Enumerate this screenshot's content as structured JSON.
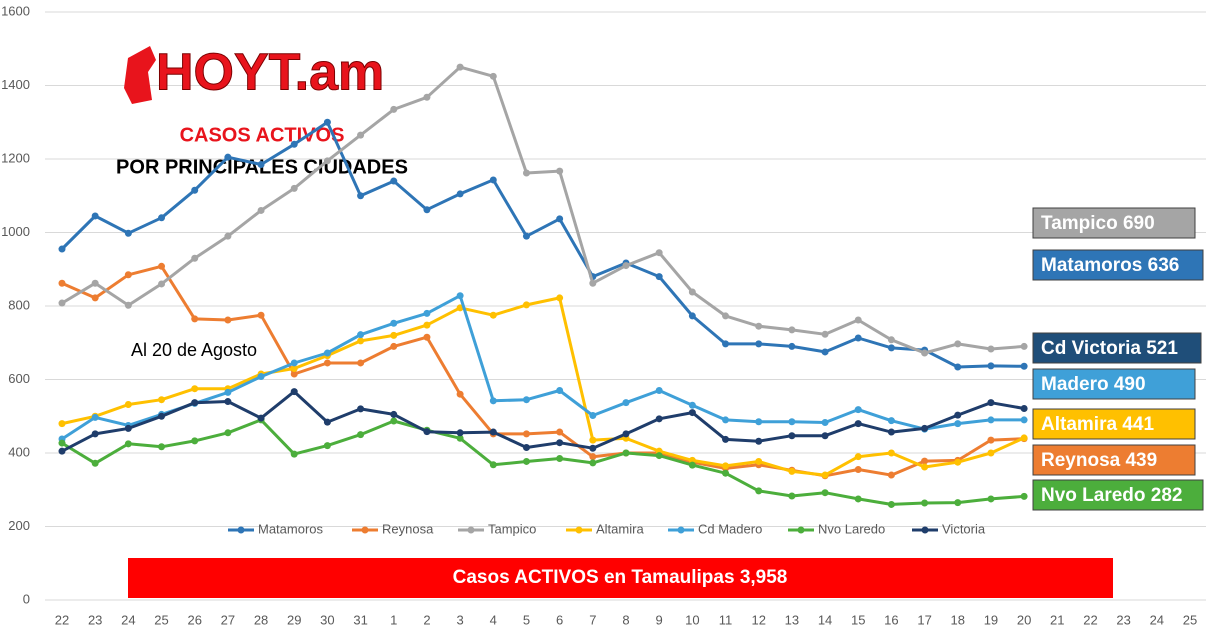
{
  "chart_data": {
    "type": "line",
    "logo": "HOYT.am",
    "title": "CASOS ACTIVOS",
    "subtitle": "POR PRINCIPALES CIUDADES",
    "date_note": "Al 20 de Agosto",
    "banner": "Casos ACTIVOS en Tamaulipas 3,958",
    "categories": [
      "22",
      "23",
      "24",
      "25",
      "26",
      "27",
      "28",
      "29",
      "30",
      "31",
      "1",
      "2",
      "3",
      "4",
      "5",
      "6",
      "7",
      "8",
      "9",
      "10",
      "11",
      "12",
      "13",
      "14",
      "15",
      "16",
      "17",
      "18",
      "19",
      "20",
      "21",
      "22",
      "23",
      "24",
      "25"
    ],
    "ylim": [
      0,
      1600
    ],
    "yticks": [
      0,
      200,
      400,
      600,
      800,
      1000,
      1200,
      1400,
      1600
    ],
    "grid": true,
    "legend": "bottom",
    "series": [
      {
        "name": "Matamoros",
        "color": "#2e75b6",
        "values": [
          955,
          1045,
          998,
          1040,
          1115,
          1205,
          1185,
          1240,
          1300,
          1100,
          1140,
          1062,
          1105,
          1143,
          990,
          1037,
          880,
          917,
          880,
          773,
          697,
          697,
          690,
          675,
          713,
          686,
          680,
          634,
          637,
          636,
          null,
          null,
          null,
          null,
          null
        ]
      },
      {
        "name": "Reynosa",
        "color": "#ed7d31",
        "values": [
          862,
          822,
          885,
          908,
          765,
          762,
          775,
          615,
          645,
          645,
          690,
          715,
          560,
          452,
          452,
          457,
          390,
          400,
          400,
          375,
          358,
          368,
          353,
          338,
          355,
          340,
          378,
          380,
          435,
          439,
          null,
          null,
          null,
          null,
          null
        ]
      },
      {
        "name": "Tampico",
        "color": "#a5a5a5",
        "values": [
          808,
          862,
          802,
          860,
          930,
          990,
          1060,
          1120,
          1195,
          1265,
          1335,
          1368,
          1450,
          1425,
          1162,
          1167,
          862,
          910,
          945,
          838,
          773,
          745,
          735,
          723,
          762,
          708,
          672,
          697,
          683,
          690,
          null,
          null,
          null,
          null,
          null
        ]
      },
      {
        "name": "Altamira",
        "color": "#ffc000",
        "values": [
          480,
          500,
          532,
          545,
          575,
          575,
          615,
          630,
          665,
          705,
          720,
          748,
          795,
          775,
          803,
          822,
          435,
          440,
          405,
          380,
          365,
          377,
          350,
          340,
          390,
          400,
          362,
          375,
          400,
          441,
          null,
          null,
          null,
          null,
          null
        ]
      },
      {
        "name": "Cd Madero",
        "color": "#3fa0d8",
        "values": [
          438,
          497,
          475,
          505,
          535,
          565,
          608,
          645,
          672,
          722,
          753,
          780,
          828,
          542,
          545,
          570,
          502,
          537,
          570,
          530,
          490,
          485,
          485,
          483,
          518,
          488,
          465,
          480,
          490,
          490,
          null,
          null,
          null,
          null,
          null
        ]
      },
      {
        "name": "Nvo Laredo",
        "color": "#4cae3c",
        "values": [
          427,
          372,
          425,
          417,
          433,
          455,
          490,
          397,
          420,
          450,
          487,
          462,
          440,
          368,
          377,
          385,
          373,
          400,
          393,
          367,
          345,
          297,
          283,
          292,
          275,
          260,
          264,
          265,
          275,
          282,
          null,
          null,
          null,
          null,
          null
        ]
      },
      {
        "name": "Victoria",
        "color": "#1f3d6b",
        "values": [
          405,
          452,
          467,
          500,
          537,
          540,
          495,
          567,
          484,
          520,
          505,
          458,
          455,
          457,
          415,
          428,
          413,
          452,
          493,
          510,
          437,
          432,
          447,
          447,
          480,
          457,
          467,
          503,
          537,
          521,
          null,
          null,
          null,
          null,
          null
        ]
      }
    ],
    "annotations": [
      {
        "text": "Tampico 690",
        "color": "#a5a5a5"
      },
      {
        "text": "Matamoros 636",
        "color": "#2e75b6"
      },
      {
        "text": "Cd Victoria 521",
        "color": "#1f4e79"
      },
      {
        "text": "Madero 490",
        "color": "#3fa0d8"
      },
      {
        "text": "Altamira 441",
        "color": "#ffc000"
      },
      {
        "text": "Reynosa 439",
        "color": "#ed7d31"
      },
      {
        "text": "Nvo Laredo 282",
        "color": "#4cae3c"
      }
    ]
  }
}
